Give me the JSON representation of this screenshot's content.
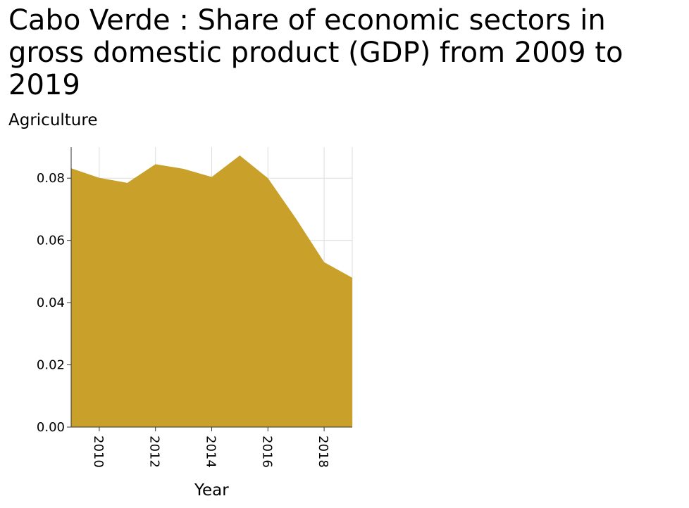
{
  "chart_data": {
    "type": "area",
    "title": "Cabo Verde : Share of economic sectors in gross domestic product (GDP) from 2009 to 2019",
    "ylabel": "Agriculture",
    "xlabel": "Year",
    "x": [
      2009,
      2010,
      2011,
      2012,
      2013,
      2014,
      2015,
      2016,
      2017,
      2018,
      2019
    ],
    "values": [
      0.0832,
      0.0801,
      0.0785,
      0.0845,
      0.083,
      0.0804,
      0.0873,
      0.08,
      0.067,
      0.053,
      0.048
    ],
    "xlim": [
      2009,
      2019
    ],
    "ylim": [
      0,
      0.09
    ],
    "xticks": [
      "2010",
      "2012",
      "2014",
      "2016",
      "2018"
    ],
    "yticks": [
      "0.00",
      "0.02",
      "0.04",
      "0.06",
      "0.08"
    ],
    "grid": true,
    "fill_color": "#c9a02a",
    "grid_color": "#dddddd"
  }
}
